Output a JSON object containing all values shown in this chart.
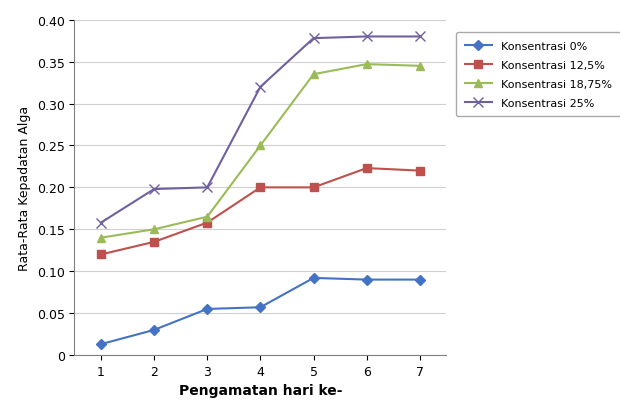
{
  "x": [
    1,
    2,
    3,
    4,
    5,
    6,
    7
  ],
  "series": [
    {
      "label": "Konsentrasi 0%",
      "values": [
        0.013,
        0.03,
        0.055,
        0.057,
        0.092,
        0.09,
        0.09
      ],
      "color": "#4472C4",
      "marker": "D",
      "markersize": 5,
      "linewidth": 1.5
    },
    {
      "label": "Konsentrasi 12,5%",
      "values": [
        0.12,
        0.135,
        0.158,
        0.2,
        0.2,
        0.223,
        0.22
      ],
      "color": "#C0504D",
      "marker": "s",
      "markersize": 6,
      "linewidth": 1.5
    },
    {
      "label": "Konsentrasi 18,75%",
      "values": [
        0.14,
        0.15,
        0.165,
        0.25,
        0.335,
        0.347,
        0.345
      ],
      "color": "#9BBB59",
      "marker": "^",
      "markersize": 6,
      "linewidth": 1.5
    },
    {
      "label": "Konsentrasi 25%",
      "values": [
        0.158,
        0.198,
        0.2,
        0.32,
        0.378,
        0.38,
        0.38
      ],
      "color": "#7060A0",
      "marker": "x",
      "markersize": 7,
      "linewidth": 1.5
    }
  ],
  "xlabel": "Pengamatan hari ke-",
  "ylabel": "Rata-Rata Kepadatan Alga",
  "xlim": [
    0.5,
    7.5
  ],
  "ylim": [
    0,
    0.4
  ],
  "yticks": [
    0,
    0.05,
    0.1,
    0.15,
    0.2,
    0.25,
    0.3,
    0.35,
    0.4
  ],
  "xticks": [
    1,
    2,
    3,
    4,
    5,
    6,
    7
  ],
  "background_color": "#ffffff",
  "grid_color": "#d0d0d0",
  "xlabel_fontsize": 10,
  "ylabel_fontsize": 9,
  "tick_fontsize": 9,
  "legend_fontsize": 8
}
